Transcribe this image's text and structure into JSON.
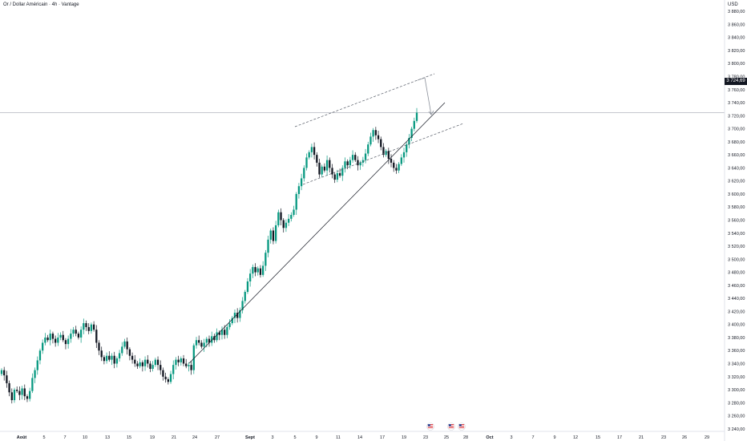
{
  "title": "Or / Dollar Américain · 4h · Vantage",
  "currency": "USD",
  "last_price_label": "3 724,69",
  "colors": {
    "up": "#089981",
    "down": "#131722",
    "trendline": "#131722",
    "channel": "#555b66",
    "projection": "#8a8f99",
    "price_line": "#b2b5be",
    "tag_bg": "#131722"
  },
  "chart_data": {
    "type": "candlestick",
    "y_axis": {
      "position": "right",
      "range": [
        3230,
        3890
      ],
      "ticks": [
        3240,
        3260,
        3280,
        3300,
        3320,
        3340,
        3360,
        3380,
        3400,
        3420,
        3440,
        3460,
        3480,
        3500,
        3520,
        3540,
        3560,
        3580,
        3600,
        3620,
        3640,
        3660,
        3680,
        3700,
        3720,
        3740,
        3760,
        3780,
        3800,
        3820,
        3840,
        3860,
        3880
      ],
      "tick_labels": [
        "3 240,00",
        "3 260,00",
        "3 280,00",
        "3 300,00",
        "3 320,00",
        "3 340,00",
        "3 360,00",
        "3 380,00",
        "3 400,00",
        "3 420,00",
        "3 440,00",
        "3 460,00",
        "3 480,00",
        "3 500,00",
        "3 520,00",
        "3 540,00",
        "3 560,00",
        "3 580,00",
        "3 600,00",
        "3 620,00",
        "3 640,00",
        "3 660,00",
        "3 680,00",
        "3 700,00",
        "3 720,00",
        "3 740,00",
        "3 760,00",
        "3 780,00",
        "3 800,00",
        "3 820,00",
        "3 840,00",
        "3 860,00",
        "3 880,00"
      ]
    },
    "x_axis": {
      "ticks": [
        {
          "label": "Août",
          "bold": true
        },
        {
          "label": "5"
        },
        {
          "label": "7"
        },
        {
          "label": "10"
        },
        {
          "label": "13"
        },
        {
          "label": "15"
        },
        {
          "label": "19"
        },
        {
          "label": "21"
        },
        {
          "label": "24"
        },
        {
          "label": "27"
        },
        {
          "label": "Sept",
          "bold": true
        },
        {
          "label": "3"
        },
        {
          "label": "5"
        },
        {
          "label": "9"
        },
        {
          "label": "11"
        },
        {
          "label": "14"
        },
        {
          "label": "17"
        },
        {
          "label": "19"
        },
        {
          "label": "23"
        },
        {
          "label": "25"
        },
        {
          "label": "28"
        },
        {
          "label": "Oct",
          "bold": true
        },
        {
          "label": "3"
        },
        {
          "label": "7"
        },
        {
          "label": "9"
        },
        {
          "label": "12"
        },
        {
          "label": "15"
        },
        {
          "label": "17"
        },
        {
          "label": "21"
        },
        {
          "label": "23"
        },
        {
          "label": "26"
        },
        {
          "label": "29"
        }
      ]
    },
    "last_price": 3724.69,
    "candles_close": [
      3330,
      3322,
      3310,
      3296,
      3284,
      3300,
      3298,
      3292,
      3302,
      3290,
      3286,
      3298,
      3318,
      3330,
      3345,
      3360,
      3372,
      3380,
      3376,
      3386,
      3378,
      3372,
      3380,
      3384,
      3376,
      3370,
      3378,
      3386,
      3392,
      3386,
      3380,
      3392,
      3402,
      3396,
      3390,
      3400,
      3392,
      3372,
      3360,
      3350,
      3344,
      3352,
      3346,
      3352,
      3340,
      3348,
      3356,
      3366,
      3374,
      3362,
      3352,
      3346,
      3340,
      3336,
      3342,
      3336,
      3346,
      3340,
      3332,
      3338,
      3346,
      3338,
      3330,
      3320,
      3316,
      3312,
      3324,
      3338,
      3346,
      3342,
      3348,
      3340,
      3336,
      3338,
      3330,
      3368,
      3376,
      3372,
      3366,
      3372,
      3378,
      3372,
      3382,
      3376,
      3388,
      3384,
      3392,
      3384,
      3396,
      3402,
      3410,
      3418,
      3410,
      3422,
      3436,
      3450,
      3466,
      3478,
      3488,
      3480,
      3486,
      3476,
      3490,
      3510,
      3530,
      3544,
      3528,
      3552,
      3572,
      3560,
      3548,
      3556,
      3562,
      3568,
      3576,
      3600,
      3612,
      3624,
      3640,
      3656,
      3664,
      3672,
      3660,
      3648,
      3630,
      3642,
      3636,
      3652,
      3640,
      3630,
      3622,
      3632,
      3628,
      3640,
      3650,
      3644,
      3652,
      3660,
      3652,
      3644,
      3648,
      3652,
      3662,
      3676,
      3688,
      3698,
      3690,
      3684,
      3672,
      3660,
      3666,
      3654,
      3648,
      3640,
      3636,
      3646,
      3656,
      3664,
      3676,
      3686,
      3700,
      3712,
      3724.69
    ]
  }
}
